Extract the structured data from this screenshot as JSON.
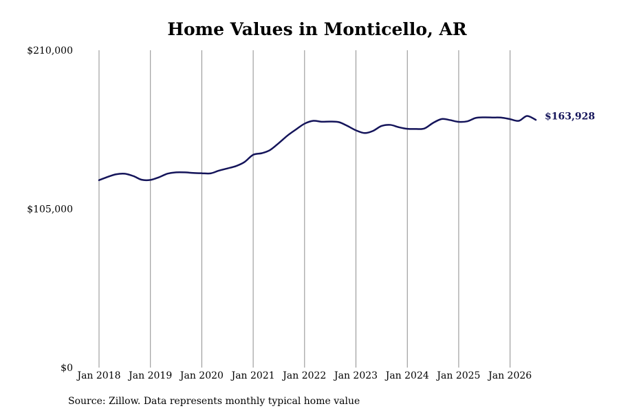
{
  "chart_data": {
    "type": "line",
    "title": "Home Values in Monticello, AR",
    "xlabel": "",
    "ylabel": "",
    "ylim": [
      0,
      210000
    ],
    "y_ticks": [
      "$0",
      "$105,000",
      "$210,000"
    ],
    "y_tick_values": [
      0,
      105000,
      210000
    ],
    "x_ticks": [
      "Jan 2018",
      "Jan 2019",
      "Jan 2020",
      "Jan 2021",
      "Jan 2022",
      "Jan 2023",
      "Jan 2024",
      "Jan 2025",
      "Jan 2026"
    ],
    "x_tick_values": [
      2018,
      2019,
      2020,
      2021,
      2022,
      2023,
      2024,
      2025,
      2026
    ],
    "xlim": [
      2018,
      2026.5
    ],
    "grid": "vertical",
    "legend": "none",
    "series": [
      {
        "color": "#14145a",
        "points": [
          [
            2018.0,
            124000
          ],
          [
            2018.17,
            126200
          ],
          [
            2018.33,
            127900
          ],
          [
            2018.5,
            128300
          ],
          [
            2018.67,
            126700
          ],
          [
            2018.83,
            124300
          ],
          [
            2019.0,
            124200
          ],
          [
            2019.17,
            126000
          ],
          [
            2019.33,
            128300
          ],
          [
            2019.5,
            129200
          ],
          [
            2019.67,
            129200
          ],
          [
            2019.83,
            128800
          ],
          [
            2020.0,
            128600
          ],
          [
            2020.17,
            128500
          ],
          [
            2020.33,
            130300
          ],
          [
            2020.5,
            131800
          ],
          [
            2020.67,
            133400
          ],
          [
            2020.83,
            136000
          ],
          [
            2021.0,
            140800
          ],
          [
            2021.17,
            141900
          ],
          [
            2021.33,
            144000
          ],
          [
            2021.5,
            148600
          ],
          [
            2021.67,
            153600
          ],
          [
            2021.83,
            157500
          ],
          [
            2022.0,
            161400
          ],
          [
            2022.17,
            163300
          ],
          [
            2022.33,
            162700
          ],
          [
            2022.5,
            162800
          ],
          [
            2022.67,
            162400
          ],
          [
            2022.83,
            160000
          ],
          [
            2023.0,
            157000
          ],
          [
            2023.17,
            155200
          ],
          [
            2023.33,
            156600
          ],
          [
            2023.5,
            159900
          ],
          [
            2023.67,
            160600
          ],
          [
            2023.83,
            159100
          ],
          [
            2024.0,
            158000
          ],
          [
            2024.17,
            157900
          ],
          [
            2024.33,
            158200
          ],
          [
            2024.5,
            161900
          ],
          [
            2024.67,
            164500
          ],
          [
            2024.83,
            163800
          ],
          [
            2025.0,
            162600
          ],
          [
            2025.17,
            163000
          ],
          [
            2025.33,
            165200
          ],
          [
            2025.5,
            165600
          ],
          [
            2025.67,
            165500
          ],
          [
            2025.83,
            165400
          ],
          [
            2026.0,
            164400
          ],
          [
            2026.17,
            163300
          ],
          [
            2026.33,
            166500
          ],
          [
            2026.5,
            163928
          ]
        ]
      }
    ],
    "end_label": "$163,928",
    "source": "Source: Zillow. Data represents monthly typical home value"
  }
}
